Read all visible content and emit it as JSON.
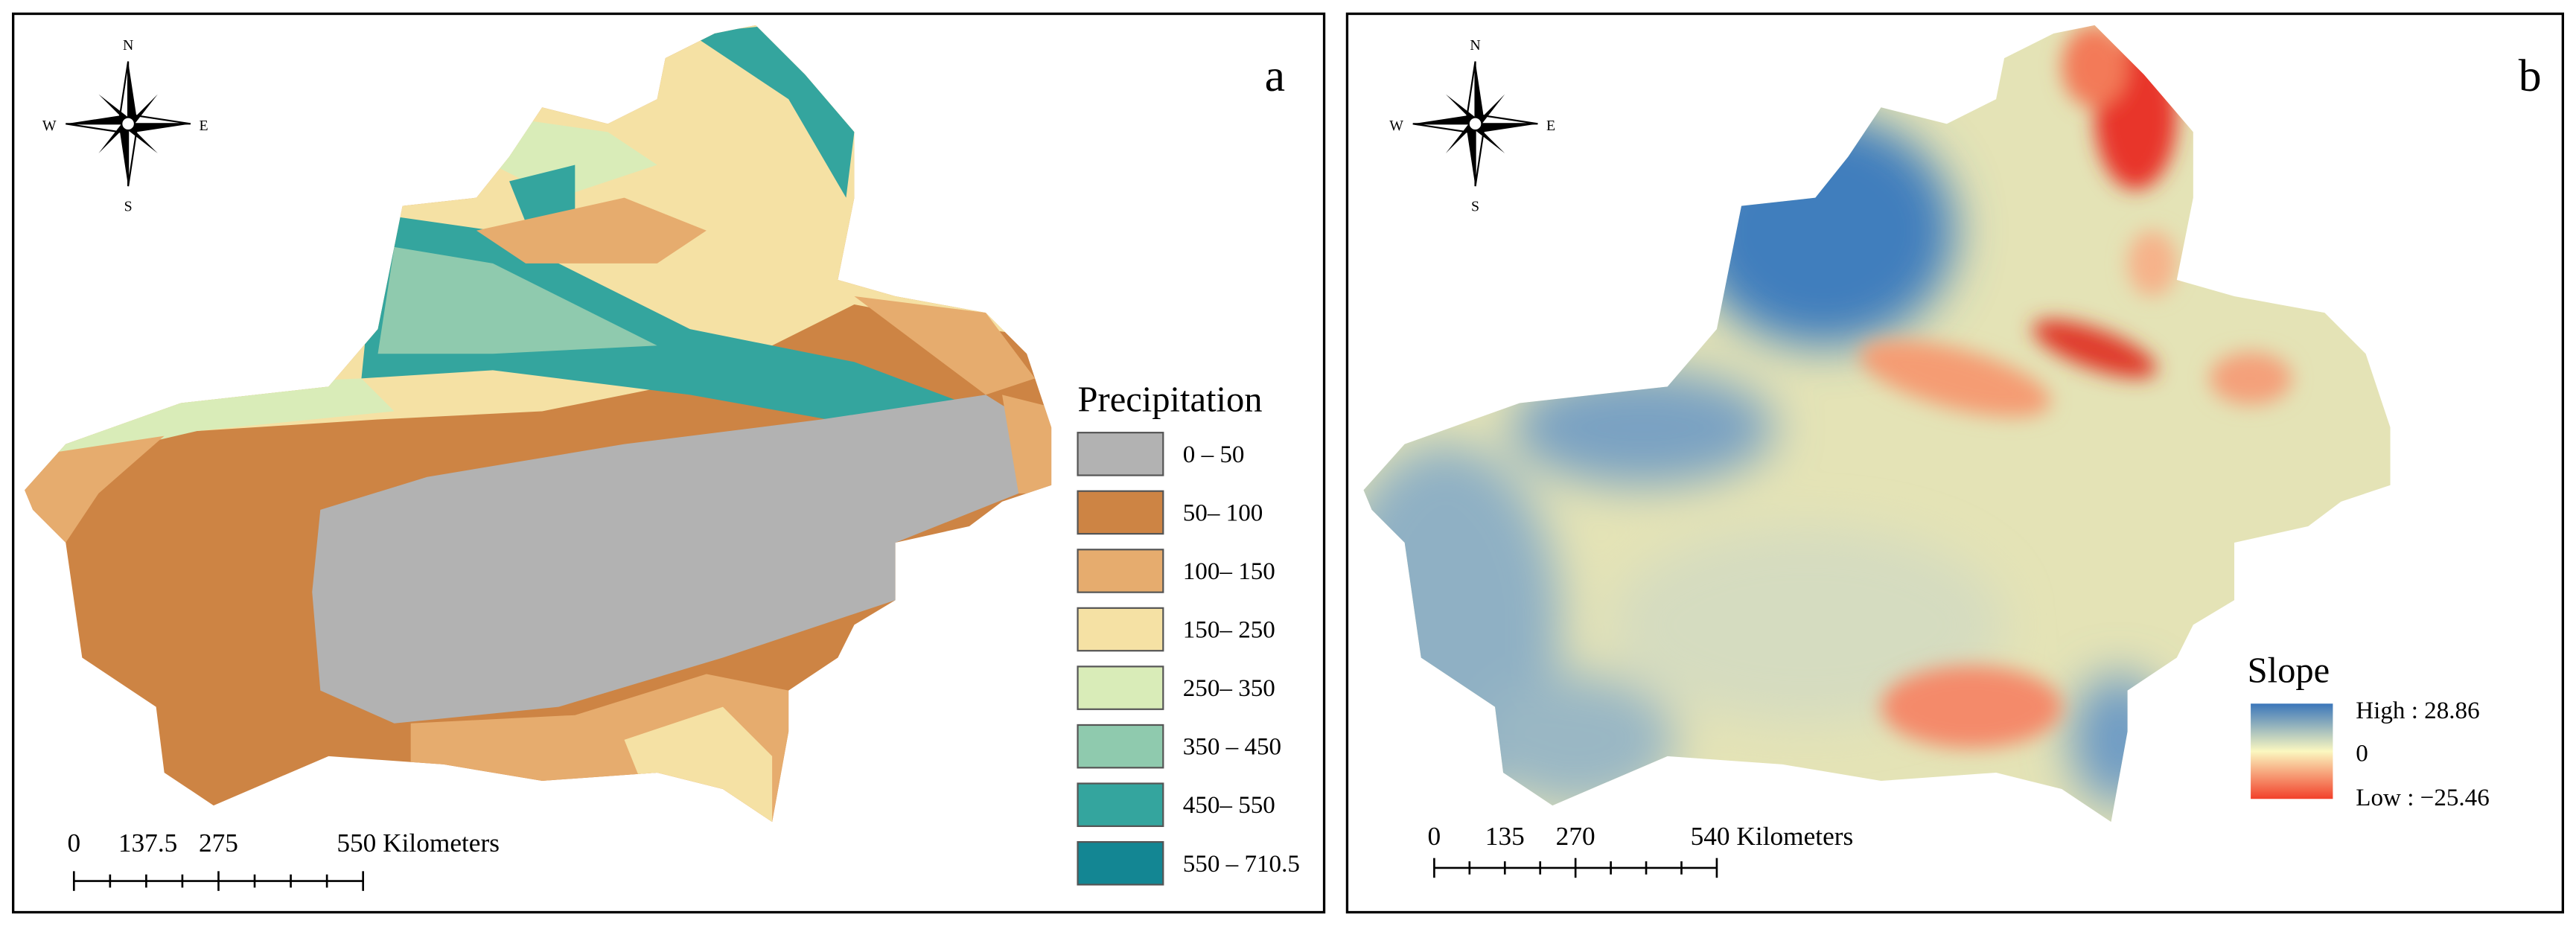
{
  "panels": [
    {
      "label": "a",
      "compass": {
        "n": "N",
        "s": "S",
        "w": "W",
        "e": "E"
      },
      "scale": {
        "ticks": [
          "0",
          "137.5",
          "275"
        ],
        "end": "550 Kilometers"
      },
      "legend": {
        "title": "Precipitation",
        "items": [
          {
            "label": "0 – 50",
            "color": "#b2b2b2"
          },
          {
            "label": "50– 100",
            "color": "#cd8444"
          },
          {
            "label": "100– 150",
            "color": "#e6ac6e"
          },
          {
            "label": "150– 250",
            "color": "#f5e1a4"
          },
          {
            "label": "250– 350",
            "color": "#d9ecb8"
          },
          {
            "label": "350 – 450",
            "color": "#8fcaae"
          },
          {
            "label": "450– 550",
            "color": "#34a59e"
          },
          {
            "label": "550 – 710.5",
            "color": "#138693"
          }
        ]
      }
    },
    {
      "label": "b",
      "compass": {
        "n": "N",
        "s": "S",
        "w": "W",
        "e": "E"
      },
      "scale": {
        "ticks": [
          "0",
          "135",
          "270"
        ],
        "end": "540 Kilometers"
      },
      "legend": {
        "title": "Slope",
        "high": "High : 28.86",
        "mid": "0",
        "low": "Low : −25.46"
      }
    }
  ]
}
